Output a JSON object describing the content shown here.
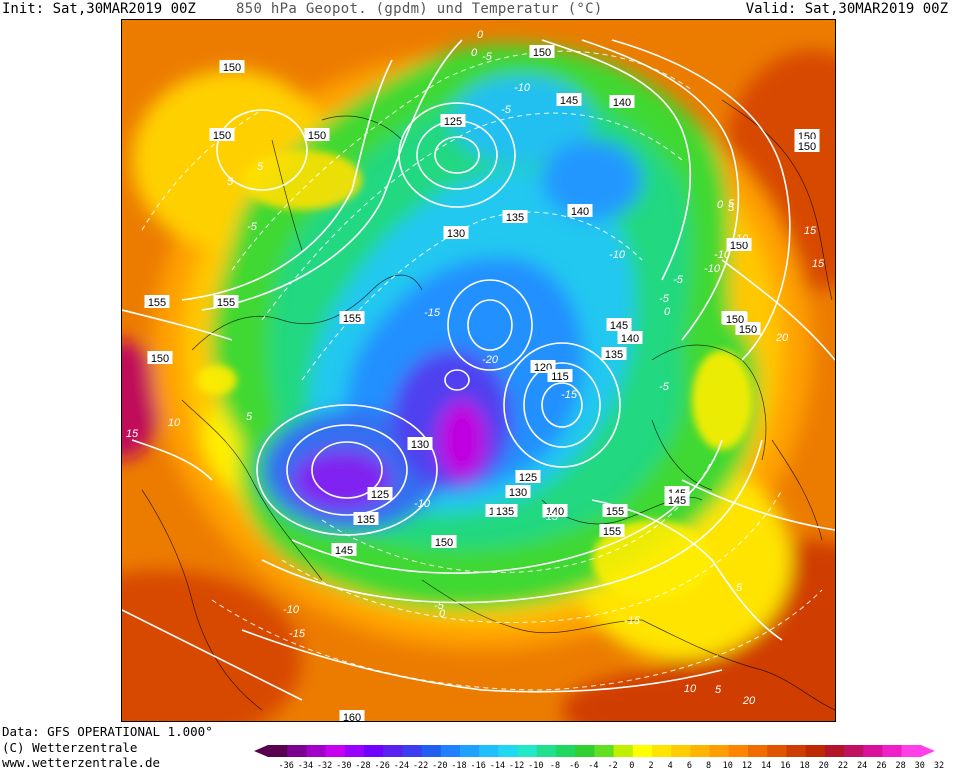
{
  "header": {
    "init": "Init: Sat,30MAR2019 00Z",
    "title": "850 hPa Geopot. (gpdm) und Temperatur (°C)",
    "valid": "Valid: Sat,30MAR2019 00Z"
  },
  "footer": {
    "data_line": "Data: GFS OPERATIONAL 1.000°",
    "copyright": "(C) Wetterzentrale",
    "url": "www.wetterzentrale.de"
  },
  "legend": {
    "ticks": [
      "-36",
      "-34",
      "-32",
      "-30",
      "-28",
      "-26",
      "-24",
      "-22",
      "-20",
      "-18",
      "-16",
      "-14",
      "-12",
      "-10",
      "-8",
      "-6",
      "-4",
      "-2",
      "0",
      "2",
      "4",
      "6",
      "8",
      "10",
      "12",
      "14",
      "16",
      "18",
      "20",
      "22",
      "24",
      "26",
      "28",
      "30",
      "32"
    ],
    "colors": [
      "#5a0050",
      "#7a0090",
      "#a000c8",
      "#c800f0",
      "#9a00ff",
      "#7000ff",
      "#5a20f0",
      "#3c3cf0",
      "#2060f0",
      "#2080ff",
      "#20a0ff",
      "#20c0ff",
      "#20d8f0",
      "#20e8c8",
      "#20e090",
      "#20d860",
      "#30d030",
      "#60e020",
      "#c0f000",
      "#ffff00",
      "#ffe400",
      "#ffcc00",
      "#ffb400",
      "#ff9c00",
      "#ff8400",
      "#f06c00",
      "#e05400",
      "#d03c00",
      "#c02800",
      "#b41428",
      "#c01060",
      "#d8109c",
      "#f020c8",
      "#ff40e8"
    ]
  },
  "map_labels": {
    "geopotential": [
      "150",
      "145",
      "140",
      "150",
      "125",
      "150",
      "135",
      "140",
      "130",
      "150",
      "155",
      "155",
      "155",
      "150",
      "150",
      "145",
      "140",
      "150",
      "135",
      "120",
      "115",
      "130",
      "125",
      "130",
      "145",
      "125",
      "135",
      "140",
      "150",
      "155",
      "150",
      "145",
      "150",
      "150",
      "135",
      "145",
      "150",
      "155",
      "160",
      "150"
    ],
    "temperature": [
      "0",
      "-5",
      "-10",
      "-5",
      "5",
      "-15",
      "-20",
      "-5",
      "-10",
      "-15",
      "-10",
      "-5",
      "0",
      "5",
      "-15",
      "-10",
      "0",
      "5",
      "10",
      "15",
      "20",
      "15",
      "-10",
      "-5",
      "0",
      "5",
      "10",
      "-5",
      "5",
      "10",
      "15",
      "-15",
      "20",
      "5",
      "-15",
      "-10",
      "-5",
      "5",
      "0"
    ]
  }
}
